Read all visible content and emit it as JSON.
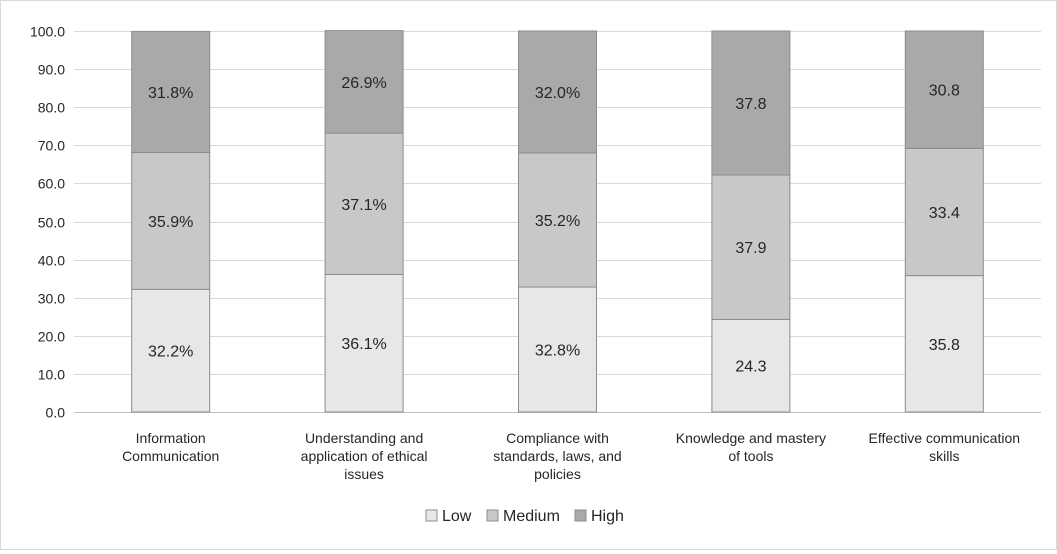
{
  "chart_data": {
    "type": "bar",
    "stacked": true,
    "categories": [
      [
        "Information",
        "Communication"
      ],
      [
        "Understanding and",
        "application of ethical",
        "issues"
      ],
      [
        "Compliance with",
        "standards, laws, and",
        "policies"
      ],
      [
        "Knowledge and mastery",
        "of tools"
      ],
      [
        "Effective communication",
        "skills"
      ]
    ],
    "series": [
      {
        "name": "Low",
        "color": "#e7e7e7",
        "values": [
          32.2,
          36.1,
          32.8,
          24.3,
          35.8
        ],
        "labels": [
          "32.2%",
          "36.1%",
          "32.8%",
          "24.3",
          "35.8"
        ]
      },
      {
        "name": "Medium",
        "color": "#c8c8c8",
        "values": [
          35.9,
          37.1,
          35.2,
          37.9,
          33.4
        ],
        "labels": [
          "35.9%",
          "37.1%",
          "35.2%",
          "37.9",
          "33.4"
        ]
      },
      {
        "name": "High",
        "color": "#a9a9a9",
        "values": [
          31.8,
          26.9,
          32.0,
          37.8,
          30.8
        ],
        "labels": [
          "31.8%",
          "26.9%",
          "32.0%",
          "37.8",
          "30.8"
        ]
      }
    ],
    "ylim": [
      0,
      100
    ],
    "yticks": [
      "0.0",
      "10.0",
      "20.0",
      "30.0",
      "40.0",
      "50.0",
      "60.0",
      "70.0",
      "80.0",
      "90.0",
      "100.0"
    ],
    "grid": true,
    "legend_position": "bottom",
    "title": "",
    "xlabel": "",
    "ylabel": ""
  }
}
